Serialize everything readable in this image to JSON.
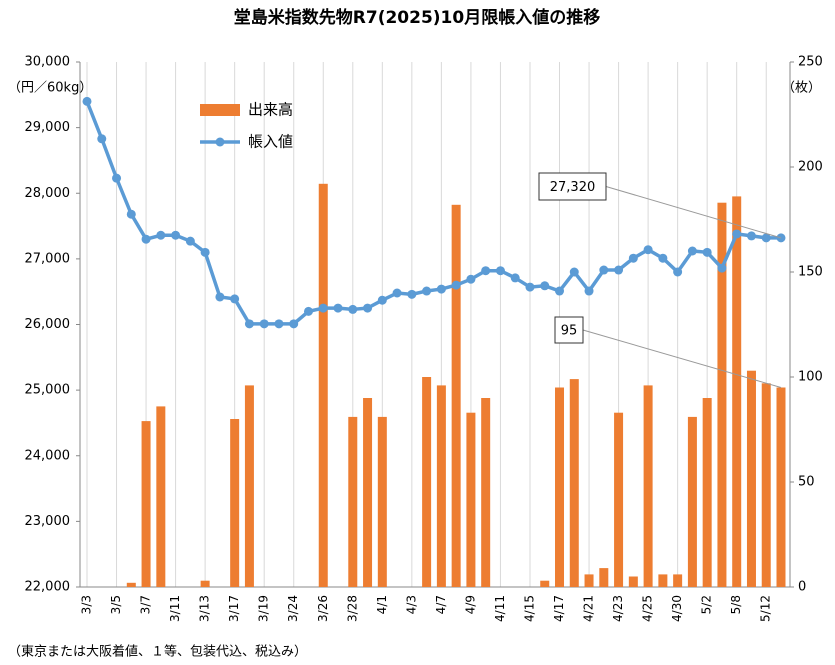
{
  "chart_data": {
    "type": "bar_line",
    "title": "堂島米指数先物R7(2025)10月限帳入値の推移",
    "y_label": "（円／60kg）",
    "y2_label": "（枚）",
    "footnote": "（東京または大阪着値、１等、包装代込、税込み）",
    "categories": [
      "3/3",
      null,
      "3/5",
      null,
      "3/7",
      null,
      "3/11",
      null,
      "3/13",
      null,
      "3/17",
      null,
      "3/19",
      null,
      "3/24",
      null,
      "3/26",
      null,
      "3/28",
      null,
      "4/1",
      null,
      "4/3",
      null,
      "4/7",
      null,
      "4/9",
      null,
      "4/11",
      null,
      "4/15",
      null,
      "4/17",
      null,
      "4/21",
      null,
      "4/23",
      null,
      "4/25",
      null,
      "4/30",
      null,
      "5/2",
      null,
      "5/8",
      null,
      "5/12",
      null
    ],
    "series": [
      {
        "name": "出来高",
        "type": "bar",
        "axis": "y2",
        "color": "#ed7d31",
        "values": [
          0,
          0,
          0,
          2,
          79,
          86,
          0,
          0,
          3,
          0,
          80,
          96,
          0,
          0,
          0,
          0,
          192,
          0,
          81,
          90,
          81,
          0,
          0,
          100,
          96,
          182,
          83,
          90,
          0,
          0,
          0,
          3,
          95,
          99,
          6,
          9,
          83,
          5,
          96,
          6,
          6,
          81,
          90,
          183,
          186,
          103,
          97,
          95
        ],
        "value_labels": [
          null,
          null,
          null,
          null,
          null,
          null,
          null,
          null,
          null,
          null,
          null,
          null,
          null,
          null,
          null,
          null,
          null,
          null,
          null,
          null,
          null,
          null,
          null,
          null,
          null,
          null,
          null,
          null,
          null,
          null,
          null,
          null,
          null,
          null,
          null,
          null,
          null,
          null,
          null,
          null,
          null,
          null,
          null,
          null,
          null,
          null,
          null,
          "95"
        ]
      },
      {
        "name": "帳入値",
        "type": "line",
        "axis": "y",
        "color": "#5b9bd5",
        "values": [
          29400,
          28830,
          28230,
          27680,
          27300,
          27360,
          27360,
          27270,
          27100,
          26420,
          26390,
          26010,
          26010,
          26010,
          26010,
          26200,
          26250,
          26250,
          26230,
          26250,
          26370,
          26480,
          26460,
          26510,
          26540,
          26600,
          26690,
          26820,
          26820,
          26710,
          26570,
          26590,
          26510,
          26800,
          26510,
          26830,
          26830,
          27010,
          27140,
          27010,
          26800,
          27120,
          27100,
          26860,
          27380,
          27350,
          27320,
          27320
        ],
        "value_labels": [
          null,
          null,
          null,
          null,
          null,
          null,
          null,
          null,
          null,
          null,
          null,
          null,
          null,
          null,
          null,
          null,
          null,
          null,
          null,
          null,
          null,
          null,
          null,
          null,
          null,
          null,
          null,
          null,
          null,
          null,
          null,
          null,
          null,
          null,
          null,
          null,
          null,
          null,
          null,
          null,
          null,
          null,
          null,
          null,
          null,
          null,
          null,
          "27,320"
        ]
      }
    ],
    "ylim": [
      22000,
      30000
    ],
    "yticks": [
      {
        "value": 22000,
        "label": "22,000"
      },
      {
        "value": 23000,
        "label": "23,000"
      },
      {
        "value": 24000,
        "label": "24,000"
      },
      {
        "value": 25000,
        "label": "25,000"
      },
      {
        "value": 26000,
        "label": "26,000"
      },
      {
        "value": 27000,
        "label": "27,000"
      },
      {
        "value": 28000,
        "label": "28,000"
      },
      {
        "value": 29000,
        "label": "29,000"
      },
      {
        "value": 30000,
        "label": "30,000"
      }
    ],
    "y2lim": [
      0,
      250
    ],
    "y2ticks": [
      0,
      50,
      100,
      150,
      200,
      250
    ],
    "grid": "x",
    "legend": "upper left"
  }
}
